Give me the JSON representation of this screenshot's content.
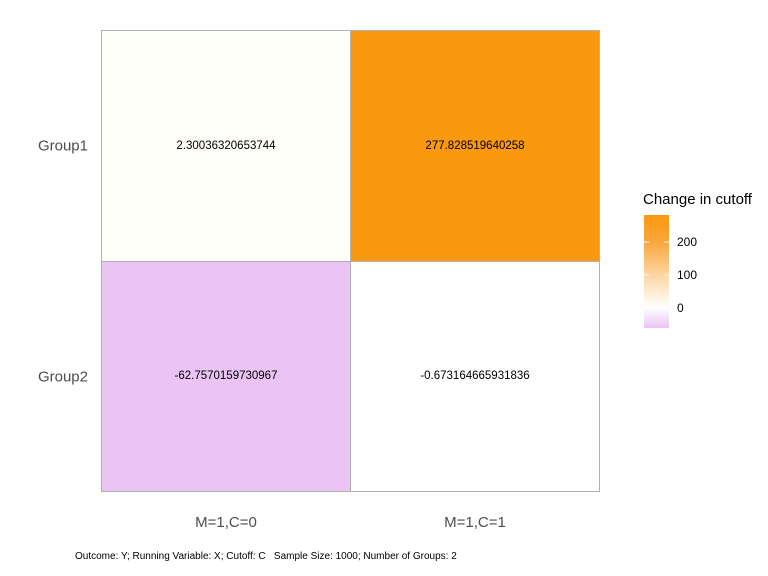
{
  "chart_data": {
    "type": "heatmap",
    "title": "",
    "x_categories": [
      "M=1,C=0",
      "M=1,C=1"
    ],
    "y_categories": [
      "Group1",
      "Group2"
    ],
    "series": [
      {
        "name": "Group1",
        "values": [
          2.30036320653744,
          277.828519640258
        ]
      },
      {
        "name": "Group2",
        "values": [
          -62.7570159730967,
          -0.673164665931836
        ]
      }
    ],
    "cell_labels": [
      [
        "2.30036320653744",
        "277.828519640258"
      ],
      [
        "-62.7570159730967",
        "-0.673164665931836"
      ]
    ],
    "cell_colors": [
      [
        "#FFFEF8",
        "#FA980F"
      ],
      [
        "#E9C4F5",
        "#FFFFFF"
      ]
    ],
    "legend": {
      "title": "Change in cutoff",
      "ticks": [
        {
          "label": "200",
          "pos_pct": 23.9
        },
        {
          "label": "100",
          "pos_pct": 53.1
        },
        {
          "label": "0",
          "pos_pct": 82.3
        }
      ],
      "gradient": [
        {
          "color": "#FA980F",
          "pos": 0
        },
        {
          "color": "#FAA63B",
          "pos": 24
        },
        {
          "color": "#FCD6A3",
          "pos": 53
        },
        {
          "color": "#FFFFFF",
          "pos": 82
        },
        {
          "color": "#E9C4F5",
          "pos": 100
        }
      ],
      "value_range": [
        -62.7570159730967,
        277.828519640258
      ],
      "position": "right"
    },
    "caption": "Outcome: Y; Running Variable: X; Cutoff: C   Sample Size: 1000; Number of Groups: 2",
    "colors": {
      "high": "#FA980F",
      "mid": "#FFFFFF",
      "low": "#E9C4F5",
      "tile_border": "#B0B0B0",
      "axis_text": "#4D4D4D"
    },
    "grid": "off"
  }
}
